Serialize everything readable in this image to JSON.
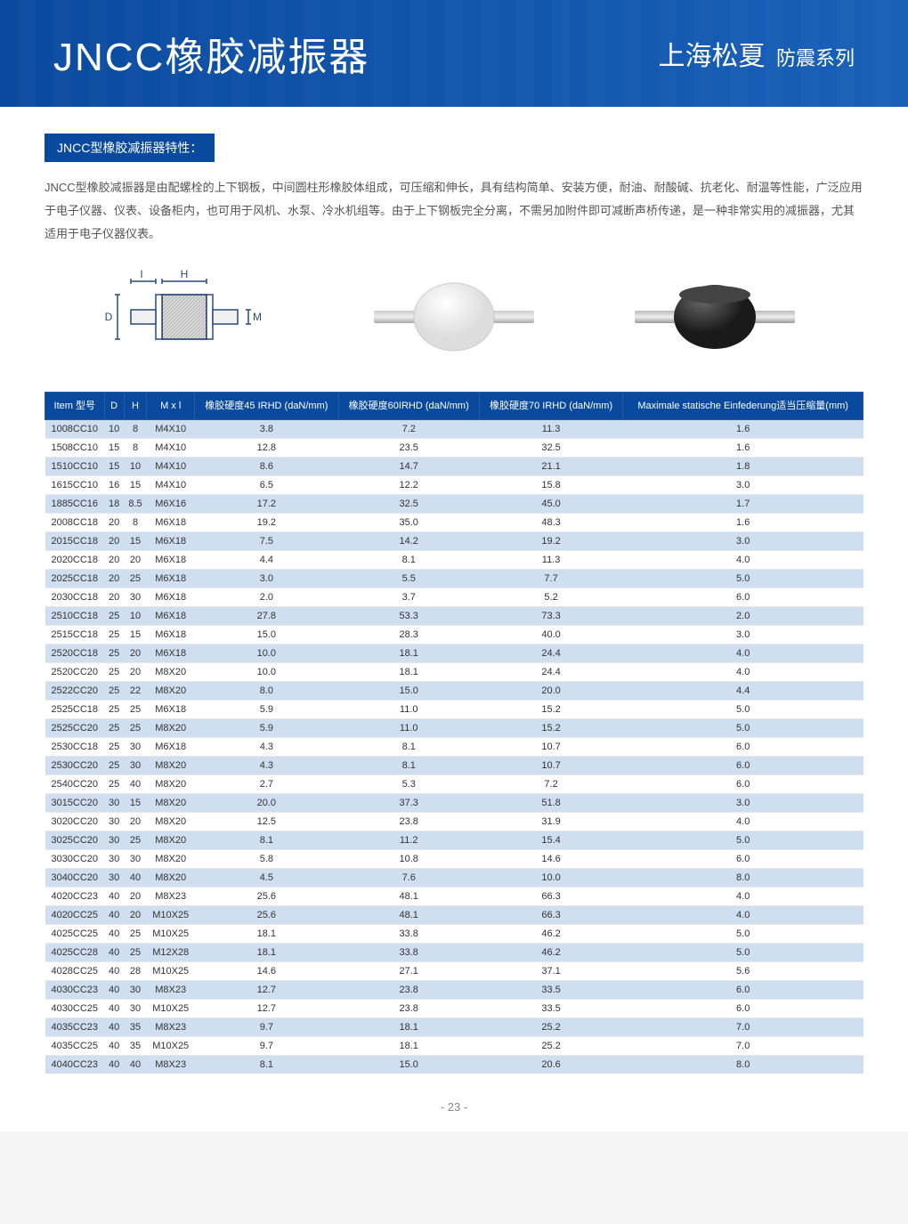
{
  "header": {
    "title": "JNCC橡胶减振器",
    "brand": "上海松夏",
    "series": "防震系列"
  },
  "section_title": "JNCC型橡胶减振器特性：",
  "description": "JNCC型橡胶减振器是由配螺栓的上下钢板，中间圆柱形橡胶体组成，可压缩和伸长，具有结构简单、安装方便，耐油、耐酸碱、抗老化、耐温等性能，广泛应用于电子仪器、仪表、设备柜内，也可用于风机、水泵、冷水机组等。由于上下钢板完全分离，不需另加附件即可减断声桥传递，是一种非常实用的减振器，尤其适用于电子仪器仪表。",
  "diagram_labels": {
    "I": "I",
    "H": "H",
    "D": "D",
    "M": "M"
  },
  "table": {
    "columns": [
      "Item 型号",
      "D",
      "H",
      "M x l",
      "橡胶硬度45 IRHD (daN/mm)",
      "橡胶硬度60IRHD (daN/mm)",
      "橡胶硬度70 IRHD (daN/mm)",
      "Maximale statische Einfederung适当压缩量(mm)"
    ],
    "rows": [
      [
        "1008CC10",
        "10",
        "8",
        "M4X10",
        "3.8",
        "7.2",
        "11.3",
        "1.6"
      ],
      [
        "1508CC10",
        "15",
        "8",
        "M4X10",
        "12.8",
        "23.5",
        "32.5",
        "1.6"
      ],
      [
        "1510CC10",
        "15",
        "10",
        "M4X10",
        "8.6",
        "14.7",
        "21.1",
        "1.8"
      ],
      [
        "1615CC10",
        "16",
        "15",
        "M4X10",
        "6.5",
        "12.2",
        "15.8",
        "3.0"
      ],
      [
        "1885CC16",
        "18",
        "8.5",
        "M6X16",
        "17.2",
        "32.5",
        "45.0",
        "1.7"
      ],
      [
        "2008CC18",
        "20",
        "8",
        "M6X18",
        "19.2",
        "35.0",
        "48.3",
        "1.6"
      ],
      [
        "2015CC18",
        "20",
        "15",
        "M6X18",
        "7.5",
        "14.2",
        "19.2",
        "3.0"
      ],
      [
        "2020CC18",
        "20",
        "20",
        "M6X18",
        "4.4",
        "8.1",
        "11.3",
        "4.0"
      ],
      [
        "2025CC18",
        "20",
        "25",
        "M6X18",
        "3.0",
        "5.5",
        "7.7",
        "5.0"
      ],
      [
        "2030CC18",
        "20",
        "30",
        "M6X18",
        "2.0",
        "3.7",
        "5.2",
        "6.0"
      ],
      [
        "2510CC18",
        "25",
        "10",
        "M6X18",
        "27.8",
        "53.3",
        "73.3",
        "2.0"
      ],
      [
        "2515CC18",
        "25",
        "15",
        "M6X18",
        "15.0",
        "28.3",
        "40.0",
        "3.0"
      ],
      [
        "2520CC18",
        "25",
        "20",
        "M6X18",
        "10.0",
        "18.1",
        "24.4",
        "4.0"
      ],
      [
        "2520CC20",
        "25",
        "20",
        "M8X20",
        "10.0",
        "18.1",
        "24.4",
        "4.0"
      ],
      [
        "2522CC20",
        "25",
        "22",
        "M8X20",
        "8.0",
        "15.0",
        "20.0",
        "4.4"
      ],
      [
        "2525CC18",
        "25",
        "25",
        "M6X18",
        "5.9",
        "11.0",
        "15.2",
        "5.0"
      ],
      [
        "2525CC20",
        "25",
        "25",
        "M8X20",
        "5.9",
        "11.0",
        "15.2",
        "5.0"
      ],
      [
        "2530CC18",
        "25",
        "30",
        "M6X18",
        "4.3",
        "8.1",
        "10.7",
        "6.0"
      ],
      [
        "2530CC20",
        "25",
        "30",
        "M8X20",
        "4.3",
        "8.1",
        "10.7",
        "6.0"
      ],
      [
        "2540CC20",
        "25",
        "40",
        "M8X20",
        "2.7",
        "5.3",
        "7.2",
        "6.0"
      ],
      [
        "3015CC20",
        "30",
        "15",
        "M8X20",
        "20.0",
        "37.3",
        "51.8",
        "3.0"
      ],
      [
        "3020CC20",
        "30",
        "20",
        "M8X20",
        "12.5",
        "23.8",
        "31.9",
        "4.0"
      ],
      [
        "3025CC20",
        "30",
        "25",
        "M8X20",
        "8.1",
        "11.2",
        "15.4",
        "5.0"
      ],
      [
        "3030CC20",
        "30",
        "30",
        "M8X20",
        "5.8",
        "10.8",
        "14.6",
        "6.0"
      ],
      [
        "3040CC20",
        "30",
        "40",
        "M8X20",
        "4.5",
        "7.6",
        "10.0",
        "8.0"
      ],
      [
        "4020CC23",
        "40",
        "20",
        "M8X23",
        "25.6",
        "48.1",
        "66.3",
        "4.0"
      ],
      [
        "4020CC25",
        "40",
        "20",
        "M10X25",
        "25.6",
        "48.1",
        "66.3",
        "4.0"
      ],
      [
        "4025CC25",
        "40",
        "25",
        "M10X25",
        "18.1",
        "33.8",
        "46.2",
        "5.0"
      ],
      [
        "4025CC28",
        "40",
        "25",
        "M12X28",
        "18.1",
        "33.8",
        "46.2",
        "5.0"
      ],
      [
        "4028CC25",
        "40",
        "28",
        "M10X25",
        "14.6",
        "27.1",
        "37.1",
        "5.6"
      ],
      [
        "4030CC23",
        "40",
        "30",
        "M8X23",
        "12.7",
        "23.8",
        "33.5",
        "6.0"
      ],
      [
        "4030CC25",
        "40",
        "30",
        "M10X25",
        "12.7",
        "23.8",
        "33.5",
        "6.0"
      ],
      [
        "4035CC23",
        "40",
        "35",
        "M8X23",
        "9.7",
        "18.1",
        "25.2",
        "7.0"
      ],
      [
        "4035CC25",
        "40",
        "35",
        "M10X25",
        "9.7",
        "18.1",
        "25.2",
        "7.0"
      ],
      [
        "4040CC23",
        "40",
        "40",
        "M8X23",
        "8.1",
        "15.0",
        "20.6",
        "8.0"
      ]
    ],
    "header_bg": "#0a4a9e",
    "odd_bg": "#d0dff0",
    "even_bg": "#ffffff"
  },
  "page_number": "- 23 -"
}
